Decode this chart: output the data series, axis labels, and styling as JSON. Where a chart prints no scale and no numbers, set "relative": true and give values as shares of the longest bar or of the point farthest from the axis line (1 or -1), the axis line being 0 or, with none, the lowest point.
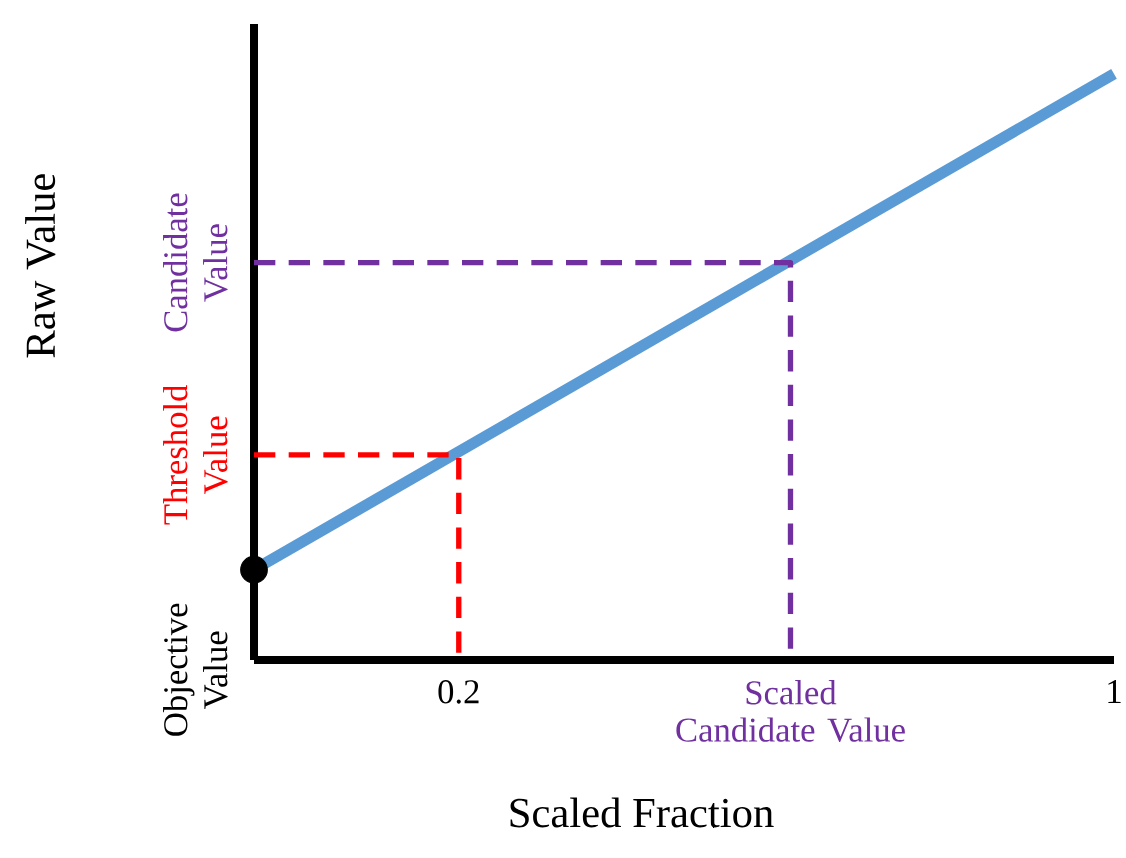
{
  "chart_data": {
    "type": "line",
    "relative": true,
    "xlabel": "Scaled Fraction",
    "ylabel": "Raw Value",
    "xlim": [
      -0.05,
      1
    ],
    "xticks": [
      0.2,
      {
        "value": 0.605,
        "label": "Scaled Candidate Value"
      },
      1
    ],
    "tick_labels": "x",
    "series": [
      {
        "color": "#5b9bd5",
        "x": [
          -0.05,
          1
        ],
        "values": [
          0.154,
          1
        ]
      },
      {
        "type": "scatter",
        "color": "#000000",
        "marker": "circle",
        "x": [
          -0.05
        ],
        "values": [
          0.154
        ]
      },
      {
        "color": "#ff0000",
        "line_style": "dashed",
        "x": [
          -0.05,
          0.2,
          0.2
        ],
        "values": [
          0.35,
          0.35,
          0
        ]
      },
      {
        "color": "#7030a0",
        "line_style": "dashed",
        "x": [
          -0.05,
          0.605,
          0.605
        ],
        "values": [
          0.678,
          0.678,
          0
        ]
      }
    ],
    "annotations": [
      "Objective Value",
      "Threshold Value",
      "Candidate Value"
    ]
  }
}
